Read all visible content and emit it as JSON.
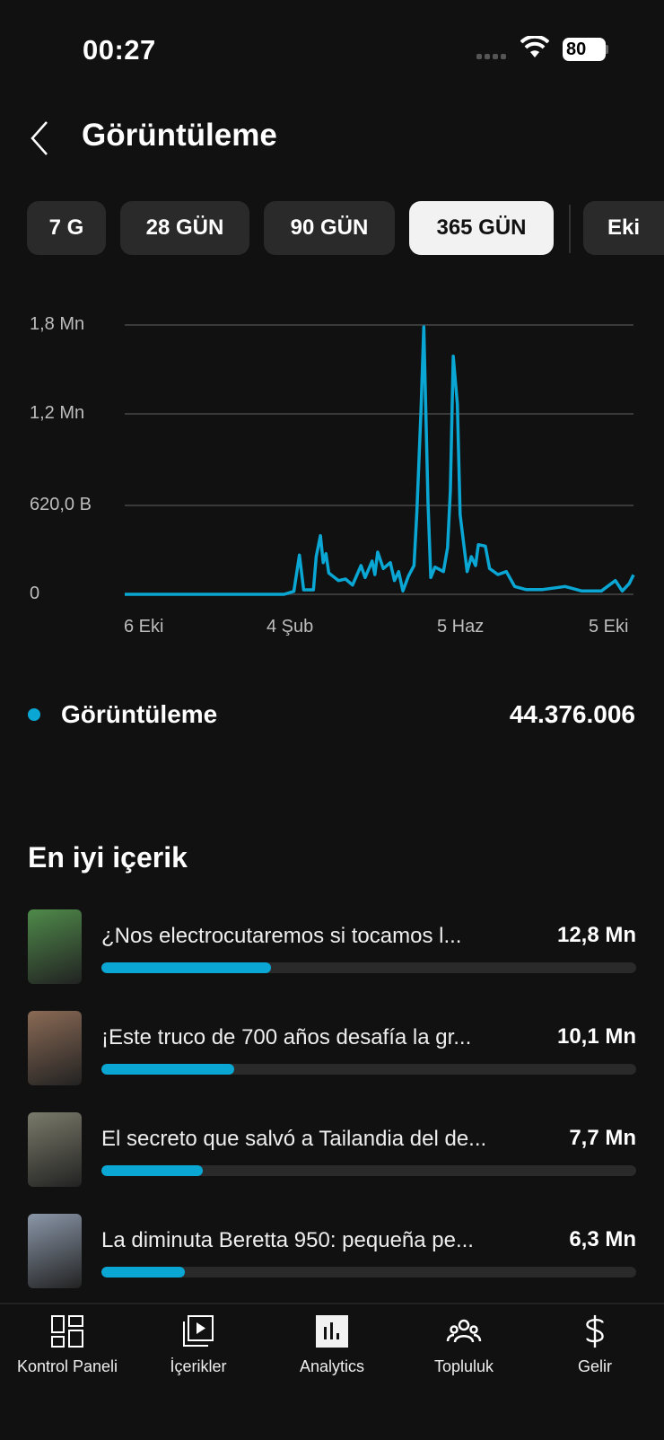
{
  "status_bar": {
    "time": "00:27",
    "battery": "80",
    "icons": [
      "signal-dots-icon",
      "wifi-icon",
      "battery-charging-icon"
    ]
  },
  "header": {
    "title": "Görüntüleme",
    "back_icon": "chevron-left-icon"
  },
  "tabs": [
    {
      "label": "7 G",
      "active": false
    },
    {
      "label": "28 GÜN",
      "active": false
    },
    {
      "label": "90 GÜN",
      "active": false
    },
    {
      "label": "365 GÜN",
      "active": true
    },
    {
      "label": "Eki",
      "active": false
    }
  ],
  "colors": {
    "accent": "#0aa7d4",
    "background": "#111111",
    "grid": "#3a3a3a"
  },
  "chart_data": {
    "type": "line",
    "x_type": "date",
    "xlim": [
      "2024-10-06",
      "2025-10-05"
    ],
    "ylim": [
      0,
      1800000
    ],
    "grid": true,
    "y_ticks": [
      {
        "value": 0,
        "label": "0"
      },
      {
        "value": 620000,
        "label": "620,0 B"
      },
      {
        "value": 1200000,
        "label": "1,2 Mn"
      },
      {
        "value": 1800000,
        "label": "1,8 Mn"
      }
    ],
    "x_ticks": [
      {
        "value": "2024-10-06",
        "label": "6 Eki"
      },
      {
        "value": "2025-02-04",
        "label": "4 Şub"
      },
      {
        "value": "2025-06-05",
        "label": "5 Haz"
      },
      {
        "value": "2025-10-05",
        "label": "5 Eki"
      }
    ],
    "series": [
      {
        "name": "Görüntüleme",
        "points": [
          [
            "2024-10-06",
            0
          ],
          [
            "2025-01-28",
            0
          ],
          [
            "2025-02-04",
            20000
          ],
          [
            "2025-02-08",
            262000
          ],
          [
            "2025-02-11",
            30000
          ],
          [
            "2025-02-18",
            30000
          ],
          [
            "2025-02-20",
            252000
          ],
          [
            "2025-02-23",
            392000
          ],
          [
            "2025-02-25",
            212000
          ],
          [
            "2025-02-27",
            272000
          ],
          [
            "2025-03-01",
            142000
          ],
          [
            "2025-03-08",
            92000
          ],
          [
            "2025-03-13",
            102000
          ],
          [
            "2025-03-18",
            62000
          ],
          [
            "2025-03-24",
            192000
          ],
          [
            "2025-03-27",
            112000
          ],
          [
            "2025-04-01",
            222000
          ],
          [
            "2025-04-03",
            132000
          ],
          [
            "2025-04-05",
            282000
          ],
          [
            "2025-04-09",
            172000
          ],
          [
            "2025-04-14",
            212000
          ],
          [
            "2025-04-17",
            92000
          ],
          [
            "2025-04-20",
            152000
          ],
          [
            "2025-04-23",
            22000
          ],
          [
            "2025-04-27",
            122000
          ],
          [
            "2025-05-01",
            192000
          ],
          [
            "2025-05-03",
            552000
          ],
          [
            "2025-05-06",
            1232000
          ],
          [
            "2025-05-08",
            1788000
          ],
          [
            "2025-05-11",
            612000
          ],
          [
            "2025-05-13",
            112000
          ],
          [
            "2025-05-16",
            182000
          ],
          [
            "2025-05-22",
            152000
          ],
          [
            "2025-05-25",
            312000
          ],
          [
            "2025-05-27",
            692000
          ],
          [
            "2025-05-29",
            1592000
          ],
          [
            "2025-06-01",
            1272000
          ],
          [
            "2025-06-03",
            532000
          ],
          [
            "2025-06-08",
            152000
          ],
          [
            "2025-06-11",
            252000
          ],
          [
            "2025-06-14",
            192000
          ],
          [
            "2025-06-16",
            332000
          ],
          [
            "2025-06-21",
            322000
          ],
          [
            "2025-06-24",
            172000
          ],
          [
            "2025-06-30",
            132000
          ],
          [
            "2025-07-06",
            152000
          ],
          [
            "2025-07-12",
            52000
          ],
          [
            "2025-07-20",
            32000
          ],
          [
            "2025-08-01",
            32000
          ],
          [
            "2025-08-17",
            52000
          ],
          [
            "2025-08-29",
            22000
          ],
          [
            "2025-09-12",
            22000
          ],
          [
            "2025-09-22",
            92000
          ],
          [
            "2025-09-27",
            22000
          ],
          [
            "2025-10-02",
            72000
          ],
          [
            "2025-10-05",
            130000
          ]
        ]
      }
    ]
  },
  "legend": {
    "label": "Görüntüleme",
    "total": "44.376.006"
  },
  "top_content": {
    "title": "En iyi içerik",
    "items": [
      {
        "title": "¿Nos electrocutaremos si tocamos l...",
        "views": "12,8 Mn",
        "fill": 0.317,
        "thumb": "#4f8a4a"
      },
      {
        "title": "¡Este truco de 700 años desafía la gr...",
        "views": "10,1 Mn",
        "fill": 0.249,
        "thumb": "#8a6a55"
      },
      {
        "title": "El secreto que salvó a Tailandia del de...",
        "views": "7,7 Mn",
        "fill": 0.19,
        "thumb": "#7a7a6a"
      },
      {
        "title": "La diminuta Beretta 950: pequeña pe...",
        "views": "6,3 Mn",
        "fill": 0.156,
        "thumb": "#8a96a8"
      }
    ]
  },
  "bottom_nav": [
    {
      "label": "Kontrol Paneli",
      "icon": "dashboard-icon"
    },
    {
      "label": "İçerikler",
      "icon": "content-library-icon"
    },
    {
      "label": "Analytics",
      "icon": "analytics-icon",
      "active": true
    },
    {
      "label": "Topluluk",
      "icon": "community-icon"
    },
    {
      "label": "Gelir",
      "icon": "dollar-icon"
    }
  ]
}
